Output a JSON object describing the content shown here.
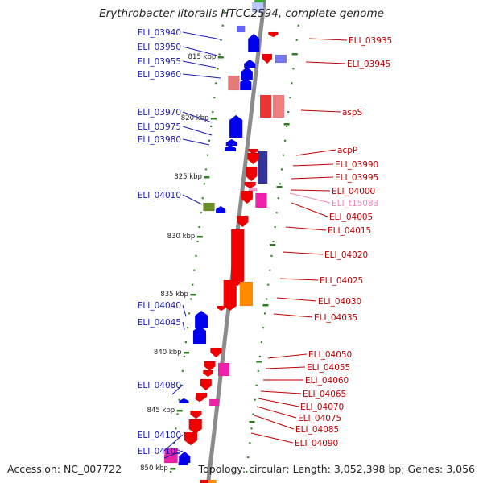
{
  "title": "Erythrobacter litoralis HTCC2594, complete genome",
  "footer": {
    "accession": "Accession: NC_007722",
    "topology": "Topology: circular; Length: 3,052,398 bp; Genes: 3,056"
  },
  "colors": {
    "backbone": "#8c8c8c",
    "tick": "#2e7d20",
    "forward_gene": "#0000ee",
    "reverse_gene": "#ee0000",
    "forward_label": "#1a1ab0",
    "reverse_label": "#c00000",
    "pseudo_label": "#ee88bb"
  },
  "scale_labels": [
    "815 kbp",
    "820 kbp",
    "825 kbp",
    "830 kbp",
    "835 kbp",
    "840 kbp",
    "845 kbp",
    "850 kbp"
  ],
  "forward_genes": [
    "ELI_03940",
    "ELI_03950",
    "ELI_03955",
    "ELI_03960",
    "ELI_03970",
    "ELI_03975",
    "ELI_03980",
    "ELI_04010",
    "ELI_04040",
    "ELI_04045",
    "ELI_04080",
    "ELI_04100",
    "ELI_04105"
  ],
  "reverse_genes": [
    "ELI_03935",
    "ELI_03945",
    "aspS",
    "acpP",
    "ELI_03990",
    "ELI_03995",
    "ELI_04000",
    "ELI_t15083",
    "ELI_04005",
    "ELI_04015",
    "ELI_04020",
    "ELI_04025",
    "ELI_04030",
    "ELI_04035",
    "ELI_04050",
    "ELI_04055",
    "ELI_04060",
    "ELI_04065",
    "ELI_04070",
    "ELI_04075",
    "ELI_04085",
    "ELI_04090"
  ]
}
